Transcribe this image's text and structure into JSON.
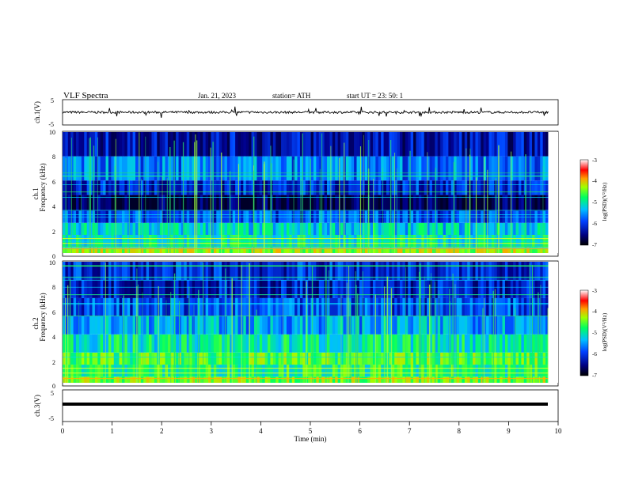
{
  "header": {
    "title": "VLF  Spectra",
    "date": "Jan. 21, 2023",
    "station": "station= ATH",
    "start": "start  UT  =    23: 50: 1"
  },
  "panels": {
    "ch1_waveform": {
      "ylabel": "ch.1(V)",
      "ticks": [
        "5",
        "-5"
      ]
    },
    "ch1_spectrogram": {
      "ylabel_top": "ch.1",
      "ylabel": "Frequency  (kHz)",
      "ticks": [
        "10",
        "8",
        "6",
        "4",
        "2",
        "0"
      ]
    },
    "ch2_spectrogram": {
      "ylabel_top": "ch.2",
      "ylabel": "Frequency  (kHz)",
      "ticks": [
        "10",
        "8",
        "6",
        "4",
        "2",
        "0"
      ]
    },
    "ch3_waveform": {
      "ylabel": "ch.3(V)",
      "ticks": [
        "5",
        "-5"
      ]
    }
  },
  "colorbars": [
    {
      "label": "log(PSD)(V²/Hz)",
      "ticks": [
        "-3",
        "-4",
        "-5",
        "-6",
        "-7"
      ]
    },
    {
      "label": "log(PSD)(V²/Hz)",
      "ticks": [
        "-3",
        "-4",
        "-5",
        "-6",
        "-7"
      ]
    }
  ],
  "colors": {
    "spectrogram_dark": "#000044",
    "accent_green": "#22e055",
    "waveform": "#000000"
  },
  "chart_data": [
    {
      "type": "line",
      "title": "",
      "xlabel": "",
      "ylabel": "ch.1(V)",
      "xlim": [
        0,
        10
      ],
      "ylim": [
        -5,
        5
      ],
      "data_extent_min": [
        0,
        9.8
      ],
      "description_values": {
        "baseline_V": 0
      }
    },
    {
      "type": "heatmap",
      "ylabel": "Frequency  (kHz)",
      "ylabel_top": "ch.1",
      "xlim": [
        0,
        10
      ],
      "ylim": [
        0,
        10
      ],
      "zlim": [
        -7,
        -3
      ],
      "zlabel": "log(PSD)(V²/Hz)",
      "band_levels": [
        {
          "f_kHz": [
            0,
            0.5
          ],
          "logPSD": -4.5
        },
        {
          "f_kHz": [
            0.5,
            1.5
          ],
          "logPSD": -5.2
        },
        {
          "f_kHz": [
            1.5,
            2.5
          ],
          "logPSD": -5.4
        },
        {
          "f_kHz": [
            2.5,
            3.5
          ],
          "logPSD": -6.0
        },
        {
          "f_kHz": [
            3.5,
            4.8
          ],
          "logPSD": -6.8
        },
        {
          "f_kHz": [
            4.8,
            6
          ],
          "logPSD": -6.2
        },
        {
          "f_kHz": [
            6,
            8
          ],
          "logPSD": -5.8
        },
        {
          "f_kHz": [
            8,
            10
          ],
          "logPSD": -6.4
        }
      ]
    },
    {
      "type": "heatmap",
      "ylabel": "Frequency  (kHz)",
      "ylabel_top": "ch.2",
      "xlim": [
        0,
        10
      ],
      "ylim": [
        0,
        10
      ],
      "zlim": [
        -7,
        -3
      ],
      "zlabel": "log(PSD)(V²/Hz)",
      "band_levels": [
        {
          "f_kHz": [
            0,
            0.5
          ],
          "logPSD": -4.6
        },
        {
          "f_kHz": [
            0.5,
            1.5
          ],
          "logPSD": -5.0
        },
        {
          "f_kHz": [
            1.5,
            2.5
          ],
          "logPSD": -4.8
        },
        {
          "f_kHz": [
            2.5,
            4
          ],
          "logPSD": -5.2
        },
        {
          "f_kHz": [
            4,
            5.5
          ],
          "logPSD": -5.6
        },
        {
          "f_kHz": [
            5.5,
            7
          ],
          "logPSD": -6.0
        },
        {
          "f_kHz": [
            7,
            8.5
          ],
          "logPSD": -6.3
        },
        {
          "f_kHz": [
            8.5,
            10
          ],
          "logPSD": -6.2
        }
      ]
    },
    {
      "type": "line",
      "title": "",
      "xlabel": "Time  (min)",
      "ylabel": "ch.3(V)",
      "xlim": [
        0,
        10
      ],
      "ylim": [
        -5,
        5
      ],
      "x_ticks": [
        "0",
        "1",
        "2",
        "3",
        "4",
        "5",
        "6",
        "7",
        "8",
        "9",
        "10"
      ],
      "data_extent_min": [
        0,
        9.8
      ],
      "description_values": {
        "level_V": 0
      }
    }
  ]
}
